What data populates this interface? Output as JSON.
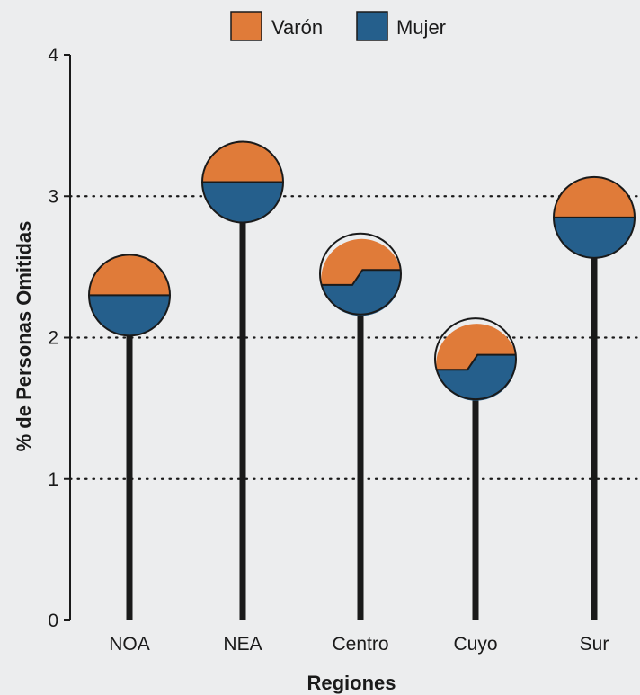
{
  "chart_data": {
    "type": "lollipop",
    "title": "",
    "xlabel": "Regiones",
    "ylabel": "% de Personas Omitidas",
    "ylim": [
      0,
      4
    ],
    "yticks": [
      0,
      1,
      2,
      3,
      4
    ],
    "gridlines_at": [
      1,
      2,
      3
    ],
    "grid": "dotted horizontal",
    "legend_position": "top-center",
    "categories": [
      "NOA",
      "NEA",
      "Centro",
      "Cuyo",
      "Sur"
    ],
    "values": [
      2.3,
      3.1,
      2.45,
      1.85,
      2.85
    ],
    "series": [
      {
        "name": "Varón",
        "color": "#e07b39",
        "share": [
          0.5,
          0.5,
          0.45,
          0.45,
          0.5
        ]
      },
      {
        "name": "Mujer",
        "color": "#255f8c",
        "share": [
          0.5,
          0.5,
          0.55,
          0.55,
          0.5
        ]
      }
    ]
  }
}
